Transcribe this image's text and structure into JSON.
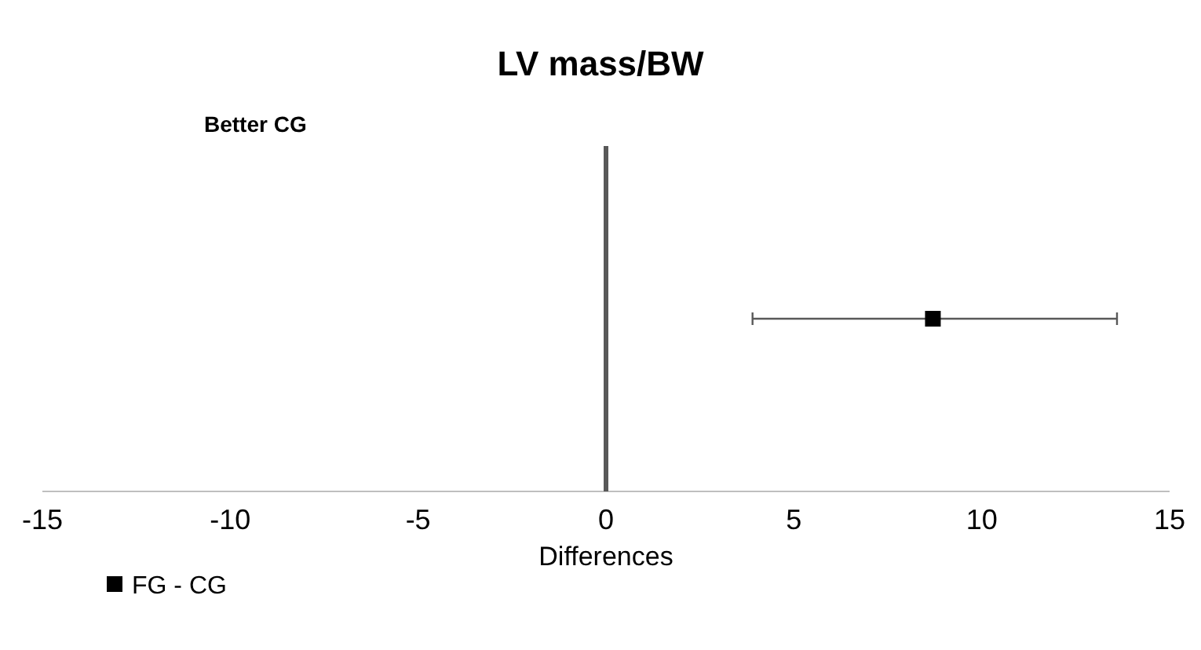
{
  "chart_data": {
    "type": "scatter",
    "orientation": "horizontal",
    "title": "LV mass/BW",
    "xlabel": "Differences",
    "categories": [
      null
    ],
    "series": [
      {
        "name": "FG - CG",
        "color": "#000000",
        "values": [
          8.7
        ],
        "errors": [
          [
            3.9,
            13.6
          ]
        ]
      }
    ],
    "xlim": [
      -15,
      15
    ],
    "xticks": [
      -15,
      -10,
      -5,
      0,
      5,
      10,
      15
    ],
    "marker": "square",
    "legend": "bottom left",
    "grid": false,
    "ref_lines": [
      {
        "axis": "x",
        "value": 0,
        "color": "#595959"
      }
    ],
    "annotations": [
      "Better CG"
    ]
  }
}
